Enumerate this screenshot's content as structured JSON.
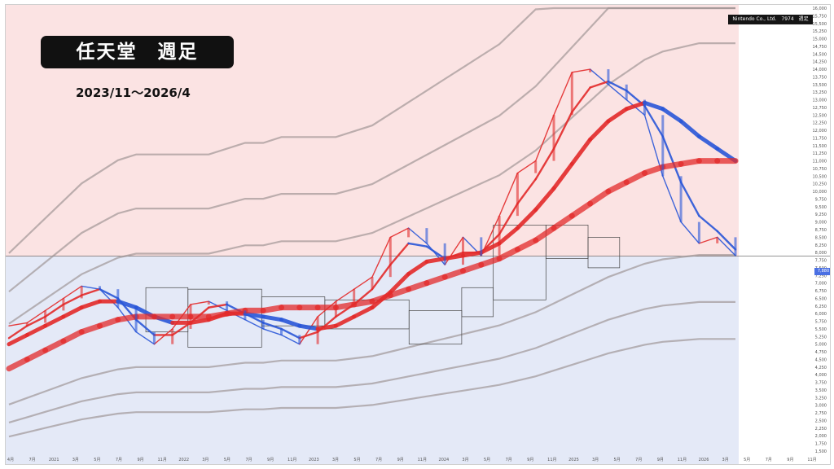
{
  "title": "任天堂　週足",
  "period": "2023/11～2026/4",
  "ticker": "Nintendo Co., Ltd.　7974　週足",
  "last_price_tag": "7,880",
  "colors": {
    "upper_band_fill": "#fbe3e3",
    "lower_band_fill": "#e4e9f7",
    "bull": "#e32b2b",
    "bear": "#2a57d8",
    "envelope": "#9a9090",
    "box": "#444444"
  },
  "chart_data": {
    "type": "line",
    "title": "任天堂　週足",
    "xlabel": "",
    "ylabel": "",
    "ylim": [
      1500,
      16000
    ],
    "grid": false,
    "y_ticks": [
      "16,000",
      "15,750",
      "15,500",
      "15,250",
      "15,000",
      "14,750",
      "14,500",
      "14,250",
      "14,000",
      "13,750",
      "13,500",
      "13,250",
      "13,000",
      "12,750",
      "12,500",
      "12,250",
      "12,000",
      "11,750",
      "11,500",
      "11,250",
      "11,000",
      "10,750",
      "10,500",
      "10,250",
      "10,000",
      "9,750",
      "9,500",
      "9,250",
      "9,000",
      "8,750",
      "8,500",
      "8,250",
      "8,000",
      "7,750",
      "7,500",
      "7,250",
      "7,000",
      "6,750",
      "6,500",
      "6,250",
      "6,000",
      "5,750",
      "5,500",
      "5,250",
      "5,000",
      "4,750",
      "4,500",
      "4,250",
      "4,000",
      "3,750",
      "3,500",
      "3,250",
      "3,000",
      "2,750",
      "2,500",
      "2,250",
      "2,000",
      "1,750",
      "1,500"
    ],
    "x_ticks": [
      "4月",
      "7月",
      "2021",
      "3月",
      "5月",
      "7月",
      "9月",
      "11月",
      "2022",
      "3月",
      "5月",
      "7月",
      "9月",
      "11月",
      "2023",
      "3月",
      "5月",
      "7月",
      "9月",
      "11月",
      "2024",
      "3月",
      "5月",
      "7月",
      "9月",
      "11月",
      "2025",
      "3月",
      "5月",
      "7月",
      "9月",
      "11月",
      "2026",
      "3月",
      "5月",
      "7月",
      "9月",
      "11月"
    ],
    "series": [
      {
        "values": [
          5600,
          5700,
          6100,
          6500,
          6900,
          6800,
          6200,
          5400,
          5000,
          5500,
          6300,
          6400,
          6100,
          5800,
          5500,
          5300,
          5000,
          5900,
          6400,
          6800,
          7200,
          8500,
          8800,
          8300,
          7600,
          8500,
          7900,
          9200,
          10600,
          11000,
          12500,
          13900,
          14000,
          13500,
          13000,
          12500,
          10500,
          9000,
          8300,
          8500,
          7900
        ]
      },
      {
        "values": [
          5200,
          5600,
          5900,
          6300,
          6600,
          6800,
          6500,
          5800,
          5300,
          5300,
          5700,
          6200,
          6300,
          6000,
          5700,
          5500,
          5200,
          5400,
          5900,
          6300,
          6800,
          7600,
          8300,
          8200,
          7800,
          8000,
          8000,
          8600,
          9600,
          10400,
          11400,
          12600,
          13400,
          13600,
          13300,
          12800,
          11800,
          10300,
          9200,
          8700,
          8100
        ]
      },
      {
        "values": [
          5000,
          5300,
          5600,
          5900,
          6200,
          6400,
          6400,
          6200,
          5900,
          5700,
          5700,
          5800,
          6000,
          6000,
          5900,
          5800,
          5600,
          5500,
          5600,
          5900,
          6200,
          6700,
          7300,
          7700,
          7800,
          7900,
          8000,
          8300,
          8800,
          9400,
          10100,
          10900,
          11700,
          12300,
          12700,
          12900,
          12700,
          12300,
          11800,
          11400,
          11000
        ]
      },
      {
        "values": [
          4200,
          4500,
          4800,
          5100,
          5400,
          5600,
          5800,
          5900,
          5900,
          5900,
          5900,
          5900,
          6000,
          6100,
          6100,
          6200,
          6200,
          6200,
          6200,
          6300,
          6400,
          6600,
          6800,
          7000,
          7200,
          7400,
          7600,
          7800,
          8100,
          8400,
          8800,
          9200,
          9600,
          10000,
          10300,
          10600,
          10800,
          10900,
          11000,
          11000,
          11000
        ]
      }
    ],
    "range_boxes": [
      {
        "x": [
          "2021-05",
          "2021-09"
        ],
        "y": [
          5400,
          6850
        ]
      },
      {
        "x": [
          "2021-09",
          "2022-04"
        ],
        "y": [
          4900,
          6800
        ]
      },
      {
        "x": [
          "2022-04",
          "2022-10"
        ],
        "y": [
          5600,
          6550
        ]
      },
      {
        "x": [
          "2022-10",
          "2023-06"
        ],
        "y": [
          5500,
          6450
        ]
      },
      {
        "x": [
          "2023-06",
          "2023-11"
        ],
        "y": [
          5000,
          6100
        ]
      },
      {
        "x": [
          "2023-11",
          "2024-02"
        ],
        "y": [
          5900,
          6850
        ]
      },
      {
        "x": [
          "2024-02",
          "2024-07"
        ],
        "y": [
          6450,
          8900
        ]
      },
      {
        "x": [
          "2024-07",
          "2024-11"
        ],
        "y": [
          7800,
          8900
        ]
      },
      {
        "x": [
          "2024-11",
          "2025-02"
        ],
        "y": [
          7500,
          8500
        ]
      }
    ]
  }
}
